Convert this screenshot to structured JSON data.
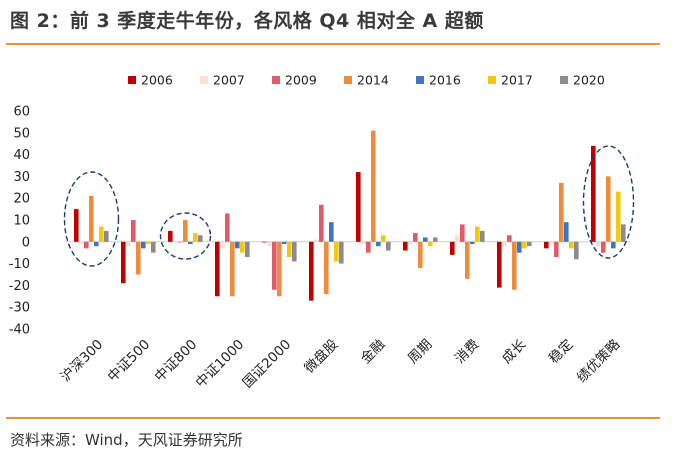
{
  "title": "图 2：前 3 季度走牛年份，各风格 Q4 相对全 A 超额",
  "source": "资料来源：Wind，天风证券研究所",
  "chart_data": {
    "type": "bar",
    "title": "图 2：前 3 季度走牛年份，各风格 Q4 相对全 A 超额",
    "xlabel": "",
    "ylabel": "",
    "ylim": [
      -40,
      60
    ],
    "yticks": [
      -40,
      -30,
      -20,
      -10,
      0,
      10,
      20,
      30,
      40,
      50,
      60
    ],
    "grid": false,
    "legend_position": "top",
    "categories": [
      "沪深300",
      "中证500",
      "中证800",
      "中证1000",
      "国证2000",
      "微盘股",
      "金融",
      "周期",
      "消费",
      "成长",
      "稳定",
      "绩优策略"
    ],
    "series": [
      {
        "name": "2006",
        "color": "#c00000",
        "values": [
          15,
          -19,
          5,
          -25,
          0,
          -27,
          32,
          -4,
          -6,
          -21,
          -3,
          44
        ]
      },
      {
        "name": "2007",
        "color": "#fbe0d2",
        "values": [
          -1,
          -2,
          0,
          -3,
          -2,
          1,
          -1,
          -1,
          3,
          -2,
          -1,
          -2
        ]
      },
      {
        "name": "2009",
        "color": "#e05a6a",
        "values": [
          -3,
          10,
          0,
          13,
          -22,
          17,
          -5,
          4,
          8,
          3,
          -7,
          -5
        ]
      },
      {
        "name": "2014",
        "color": "#ed8c3c",
        "values": [
          21,
          -15,
          10,
          -25,
          -25,
          -24,
          51,
          -12,
          -17,
          -22,
          27,
          30
        ]
      },
      {
        "name": "2016",
        "color": "#4472c4",
        "values": [
          -2,
          -3,
          -1,
          -3,
          -1,
          9,
          -2,
          2,
          -1,
          -5,
          9,
          -3
        ]
      },
      {
        "name": "2017",
        "color": "#f2c811",
        "values": [
          7,
          -1,
          4,
          -5,
          -7,
          -9,
          3,
          -2,
          7,
          -3,
          -3,
          23
        ]
      },
      {
        "name": "2020",
        "color": "#8c8c8c",
        "values": [
          5,
          -5,
          3,
          -7,
          -9,
          -10,
          -4,
          2,
          5,
          -2,
          -8,
          8
        ]
      }
    ],
    "annotations": [
      {
        "type": "dashed-ellipse",
        "category": "沪深300"
      },
      {
        "type": "dashed-ellipse",
        "category": "中证800"
      },
      {
        "type": "dashed-ellipse",
        "category": "绩优策略"
      }
    ]
  }
}
